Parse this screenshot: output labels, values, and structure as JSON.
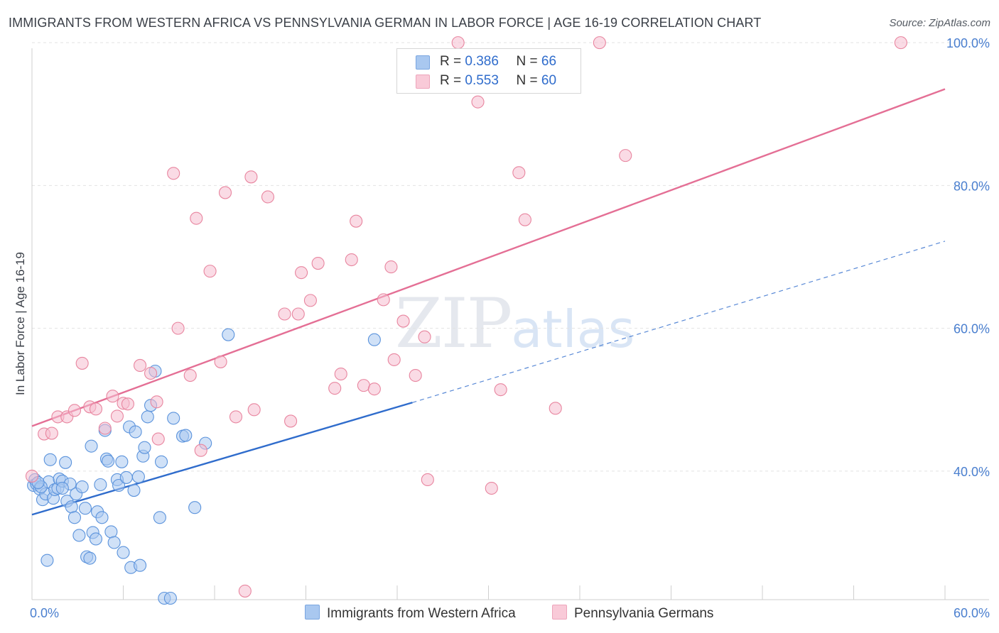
{
  "title": "IMMIGRANTS FROM WESTERN AFRICA VS PENNSYLVANIA GERMAN IN LABOR FORCE | AGE 16-19 CORRELATION CHART",
  "source": "Source: ZipAtlas.com",
  "watermark": {
    "zip": "ZIP",
    "atlas": "atlas"
  },
  "legend": {
    "series1": {
      "r_label": "R =",
      "r_value": "0.386",
      "n_label": "N =",
      "n_value": "66",
      "color": "#a8c8f0"
    },
    "series2": {
      "r_label": "R =",
      "r_value": "0.553",
      "n_label": "N =",
      "n_value": "60",
      "color": "#f5b8cb"
    }
  },
  "bottom_legend": {
    "series1": "Immigrants from Western Africa",
    "series2": "Pennsylvania Germans"
  },
  "chart_data": {
    "type": "scatter",
    "title": "IMMIGRANTS FROM WESTERN AFRICA VS PENNSYLVANIA GERMAN IN LABOR FORCE | AGE 16-19 CORRELATION CHART",
    "xlabel": "",
    "ylabel": "In Labor Force | Age 16-19",
    "xlim": [
      0,
      60
    ],
    "ylim": [
      22,
      102
    ],
    "x_tick_labels": [
      "0.0%",
      "60.0%"
    ],
    "y_ticks": [
      40,
      60,
      80,
      100
    ],
    "y_tick_labels": [
      "40.0%",
      "60.0%",
      "80.0%",
      "100.0%"
    ],
    "grid": true,
    "series": [
      {
        "name": "Immigrants from Western Africa",
        "color": "#5b93dc",
        "fill": "#a9c8f0",
        "trend": {
          "x0": 0,
          "y0": 33.9,
          "x1": 25,
          "y1": 49.6,
          "dash_to_x": 60,
          "dash_to_y": 72.2,
          "color": "#2f6ccc"
        },
        "points": [
          [
            0.1,
            38.0
          ],
          [
            0.2,
            38.8
          ],
          [
            0.3,
            38.2
          ],
          [
            0.5,
            37.5
          ],
          [
            0.7,
            36.0
          ],
          [
            0.9,
            36.8
          ],
          [
            1.1,
            38.5
          ],
          [
            1.2,
            41.6
          ],
          [
            1.4,
            36.2
          ],
          [
            1.5,
            37.4
          ],
          [
            1.7,
            37.6
          ],
          [
            1.8,
            38.9
          ],
          [
            2.0,
            38.6
          ],
          [
            2.2,
            41.2
          ],
          [
            2.3,
            35.8
          ],
          [
            2.5,
            38.2
          ],
          [
            2.6,
            35.0
          ],
          [
            2.8,
            33.5
          ],
          [
            2.9,
            36.8
          ],
          [
            3.1,
            31.0
          ],
          [
            3.3,
            37.8
          ],
          [
            3.5,
            34.8
          ],
          [
            3.6,
            28.0
          ],
          [
            3.8,
            27.8
          ],
          [
            3.9,
            43.5
          ],
          [
            4.0,
            31.4
          ],
          [
            4.2,
            30.5
          ],
          [
            4.3,
            34.3
          ],
          [
            4.5,
            38.1
          ],
          [
            4.6,
            33.5
          ],
          [
            4.8,
            45.7
          ],
          [
            4.9,
            41.7
          ],
          [
            5.0,
            41.4
          ],
          [
            5.2,
            31.5
          ],
          [
            5.4,
            30.0
          ],
          [
            5.6,
            38.8
          ],
          [
            5.7,
            38.0
          ],
          [
            5.9,
            41.3
          ],
          [
            6.0,
            28.6
          ],
          [
            6.2,
            39.1
          ],
          [
            6.4,
            46.2
          ],
          [
            6.5,
            26.5
          ],
          [
            6.7,
            37.3
          ],
          [
            6.8,
            45.5
          ],
          [
            7.0,
            39.2
          ],
          [
            7.1,
            26.8
          ],
          [
            7.3,
            42.1
          ],
          [
            7.4,
            43.3
          ],
          [
            7.6,
            47.6
          ],
          [
            7.8,
            49.2
          ],
          [
            8.1,
            54.0
          ],
          [
            8.4,
            33.5
          ],
          [
            8.5,
            41.3
          ],
          [
            8.7,
            22.2
          ],
          [
            9.1,
            22.2
          ],
          [
            9.3,
            47.4
          ],
          [
            9.9,
            44.9
          ],
          [
            10.1,
            45.0
          ],
          [
            10.7,
            34.9
          ],
          [
            11.4,
            43.9
          ],
          [
            12.9,
            59.1
          ],
          [
            22.5,
            58.4
          ],
          [
            2.0,
            37.6
          ],
          [
            1.0,
            27.5
          ],
          [
            0.6,
            37.8
          ],
          [
            0.4,
            38.4
          ]
        ]
      },
      {
        "name": "Pennsylvania Germans",
        "color": "#e8859f",
        "fill": "#f6bdcf",
        "trend": {
          "x0": 0,
          "y0": 46.3,
          "x1": 60,
          "y1": 93.5,
          "color": "#e46f95"
        },
        "points": [
          [
            0.0,
            39.3
          ],
          [
            0.8,
            45.2
          ],
          [
            1.3,
            45.3
          ],
          [
            1.7,
            47.6
          ],
          [
            2.3,
            47.6
          ],
          [
            2.8,
            48.5
          ],
          [
            3.3,
            55.1
          ],
          [
            3.8,
            49.0
          ],
          [
            4.2,
            48.7
          ],
          [
            4.8,
            46.0
          ],
          [
            5.3,
            50.5
          ],
          [
            5.6,
            47.7
          ],
          [
            6.0,
            49.5
          ],
          [
            6.3,
            49.4
          ],
          [
            7.1,
            54.8
          ],
          [
            7.8,
            53.7
          ],
          [
            8.2,
            49.7
          ],
          [
            8.3,
            44.5
          ],
          [
            9.3,
            81.7
          ],
          [
            9.6,
            60.0
          ],
          [
            10.4,
            53.4
          ],
          [
            10.8,
            75.4
          ],
          [
            11.1,
            42.9
          ],
          [
            11.7,
            68.0
          ],
          [
            12.4,
            55.3
          ],
          [
            12.7,
            79.0
          ],
          [
            13.4,
            47.6
          ],
          [
            14.0,
            23.2
          ],
          [
            14.4,
            81.2
          ],
          [
            14.6,
            48.6
          ],
          [
            15.5,
            78.4
          ],
          [
            16.6,
            62.0
          ],
          [
            17.0,
            47.0
          ],
          [
            17.5,
            62.0
          ],
          [
            17.7,
            67.8
          ],
          [
            18.3,
            63.9
          ],
          [
            18.8,
            69.1
          ],
          [
            19.9,
            51.6
          ],
          [
            20.3,
            53.6
          ],
          [
            21.0,
            69.6
          ],
          [
            21.3,
            75.0
          ],
          [
            21.8,
            52.0
          ],
          [
            22.5,
            51.5
          ],
          [
            23.1,
            64.0
          ],
          [
            23.6,
            68.6
          ],
          [
            23.8,
            55.6
          ],
          [
            24.4,
            61.0
          ],
          [
            25.2,
            53.4
          ],
          [
            25.8,
            58.8
          ],
          [
            26.0,
            38.8
          ],
          [
            28.0,
            100.0
          ],
          [
            29.3,
            91.7
          ],
          [
            30.2,
            37.6
          ],
          [
            30.8,
            51.4
          ],
          [
            32.0,
            81.8
          ],
          [
            32.4,
            75.2
          ],
          [
            34.4,
            48.8
          ],
          [
            37.3,
            100.0
          ],
          [
            39.0,
            84.2
          ],
          [
            57.1,
            100.0
          ]
        ]
      }
    ]
  }
}
